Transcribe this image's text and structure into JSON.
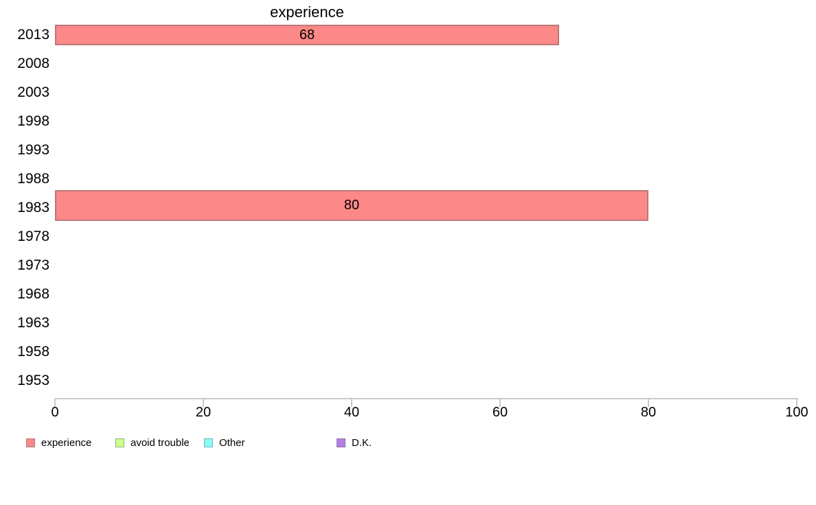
{
  "chart_data": {
    "type": "bar",
    "orientation": "horizontal",
    "title": "experience",
    "categories": [
      "2013",
      "2008",
      "2003",
      "1998",
      "1993",
      "1988",
      "1983",
      "1978",
      "1973",
      "1968",
      "1963",
      "1958",
      "1953"
    ],
    "series": [
      {
        "name": "experience",
        "color": "#fc8888",
        "values": [
          68,
          null,
          null,
          null,
          null,
          null,
          80,
          null,
          null,
          null,
          null,
          null,
          null
        ]
      }
    ],
    "bar_labels": [
      "68",
      "80"
    ],
    "xlabel": "",
    "ylabel": "",
    "xlim": [
      0,
      100
    ],
    "x_ticks": [
      0,
      20,
      40,
      60,
      80,
      100
    ],
    "grid": false,
    "legend_position": "bottom",
    "legend": [
      {
        "label": "experience",
        "color": "#fc8888"
      },
      {
        "label": "avoid trouble",
        "color": "#ccff8c"
      },
      {
        "label": "Other",
        "color": "#87ffff"
      },
      {
        "label": "D.K.",
        "color": "#b380e6"
      }
    ],
    "colors": {
      "bar_fill": "#fc8888",
      "bar_border": "#ab9595",
      "axis": "#c9c9c9",
      "text": "#000000"
    }
  }
}
